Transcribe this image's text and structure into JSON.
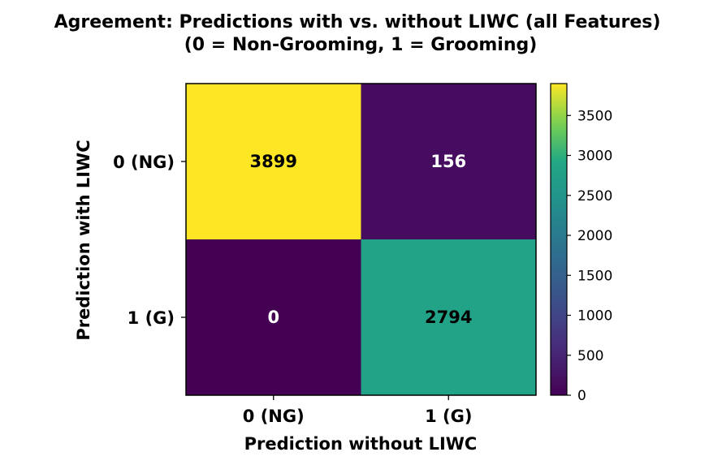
{
  "chart_data": {
    "type": "heatmap",
    "title_line1": "Agreement: Predictions with vs. without LIWC (all Features)",
    "title_line2": "(0 = Non-Grooming, 1 = Grooming)",
    "xlabel": "Prediction without LIWC",
    "ylabel": "Prediction with LIWC",
    "x_categories": [
      "0 (NG)",
      "1 (G)"
    ],
    "y_categories": [
      "0 (NG)",
      "1 (G)"
    ],
    "matrix": [
      [
        3899,
        156
      ],
      [
        0,
        2794
      ]
    ],
    "colormap": "viridis",
    "colorbar": {
      "range": [
        0,
        3899
      ],
      "ticks": [
        0,
        500,
        1000,
        1500,
        2000,
        2500,
        3000,
        3500
      ]
    }
  }
}
